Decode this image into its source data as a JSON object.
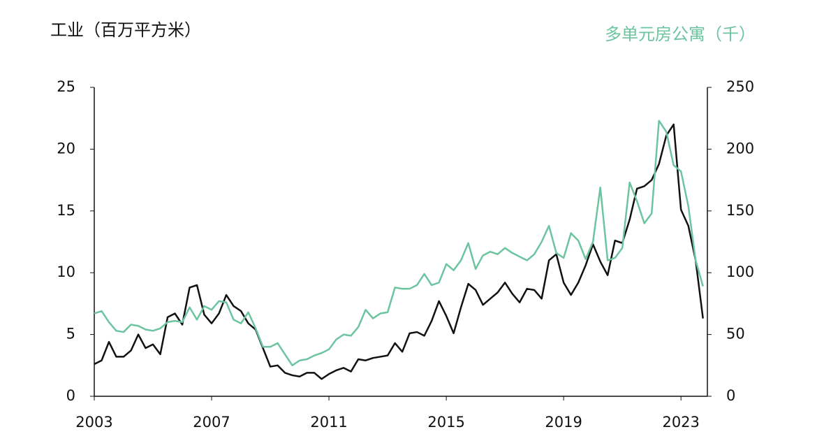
{
  "chart_data": {
    "type": "line",
    "ylabel": "工业（百万平方米）",
    "y2label": "多单元房公寓（千）",
    "x": [
      2003,
      2003.25,
      2003.5,
      2003.75,
      2004,
      2004.25,
      2004.5,
      2004.75,
      2005,
      2005.25,
      2005.5,
      2005.75,
      2006,
      2006.25,
      2006.5,
      2006.75,
      2007,
      2007.25,
      2007.5,
      2007.75,
      2008,
      2008.25,
      2008.5,
      2008.75,
      2009,
      2009.25,
      2009.5,
      2009.75,
      2010,
      2010.25,
      2010.5,
      2010.75,
      2011,
      2011.25,
      2011.5,
      2011.75,
      2012,
      2012.25,
      2012.5,
      2012.75,
      2013,
      2013.25,
      2013.5,
      2013.75,
      2014,
      2014.25,
      2014.5,
      2014.75,
      2015,
      2015.25,
      2015.5,
      2015.75,
      2016,
      2016.25,
      2016.5,
      2016.75,
      2017,
      2017.25,
      2017.5,
      2017.75,
      2018,
      2018.25,
      2018.5,
      2018.75,
      2019,
      2019.25,
      2019.5,
      2019.75,
      2020,
      2020.25,
      2020.5,
      2020.75,
      2021,
      2021.25,
      2021.5,
      2021.75,
      2022,
      2022.25,
      2022.5,
      2022.75,
      2023,
      2023.25,
      2023.5,
      2023.75
    ],
    "series": [
      {
        "color": "#111111",
        "values": [
          2.6,
          2.9,
          4.4,
          3.2,
          3.2,
          3.7,
          5.0,
          3.9,
          4.2,
          3.4,
          6.4,
          6.7,
          5.8,
          8.8,
          9.0,
          6.6,
          5.9,
          6.7,
          8.2,
          7.3,
          6.9,
          5.9,
          5.4,
          3.9,
          2.4,
          2.5,
          1.9,
          1.7,
          1.6,
          1.9,
          1.9,
          1.4,
          1.8,
          2.1,
          2.3,
          2.0,
          3.0,
          2.9,
          3.1,
          3.2,
          3.3,
          4.3,
          3.6,
          5.1,
          5.2,
          4.9,
          6.1,
          7.7,
          6.5,
          5.1,
          7.2,
          9.1,
          8.6,
          7.4,
          7.9,
          8.4,
          9.2,
          8.3,
          7.6,
          8.7,
          8.6,
          7.9,
          11.0,
          11.5,
          9.2,
          8.2,
          9.2,
          10.6,
          12.3,
          10.9,
          9.8,
          12.6,
          12.4,
          14.3,
          16.8,
          17.0,
          17.5,
          18.8,
          21.1,
          22.0,
          15.1,
          13.8,
          11.0,
          6.3
        ]
      },
      {
        "color": "#6cc4a0",
        "axis": "y2",
        "values": [
          67,
          69,
          60,
          53,
          52,
          58,
          57,
          54,
          53,
          55,
          60,
          61,
          60,
          72,
          62,
          73,
          70,
          77,
          76,
          62,
          59,
          68,
          55,
          40,
          40,
          43,
          34,
          25,
          29,
          30,
          33,
          35,
          38,
          46,
          50,
          49,
          56,
          70,
          63,
          67,
          68,
          88,
          87,
          87,
          90,
          99,
          90,
          92,
          107,
          102,
          110,
          124,
          103,
          114,
          117,
          115,
          120,
          116,
          113,
          110,
          115,
          125,
          138,
          116,
          112,
          132,
          126,
          111,
          125,
          169,
          110,
          112,
          120,
          173,
          158,
          140,
          148,
          223,
          214,
          187,
          182,
          154,
          110,
          89
        ]
      }
    ],
    "xlim": [
      2003,
      2023.9
    ],
    "xticks": [
      2003,
      2007,
      2011,
      2015,
      2019,
      2023
    ],
    "ylim": [
      0,
      25
    ],
    "yticks": [
      0,
      5,
      10,
      15,
      20,
      25
    ],
    "y2lim": [
      0,
      250
    ],
    "y2ticks": [
      0,
      50,
      100,
      150,
      200,
      250
    ]
  }
}
